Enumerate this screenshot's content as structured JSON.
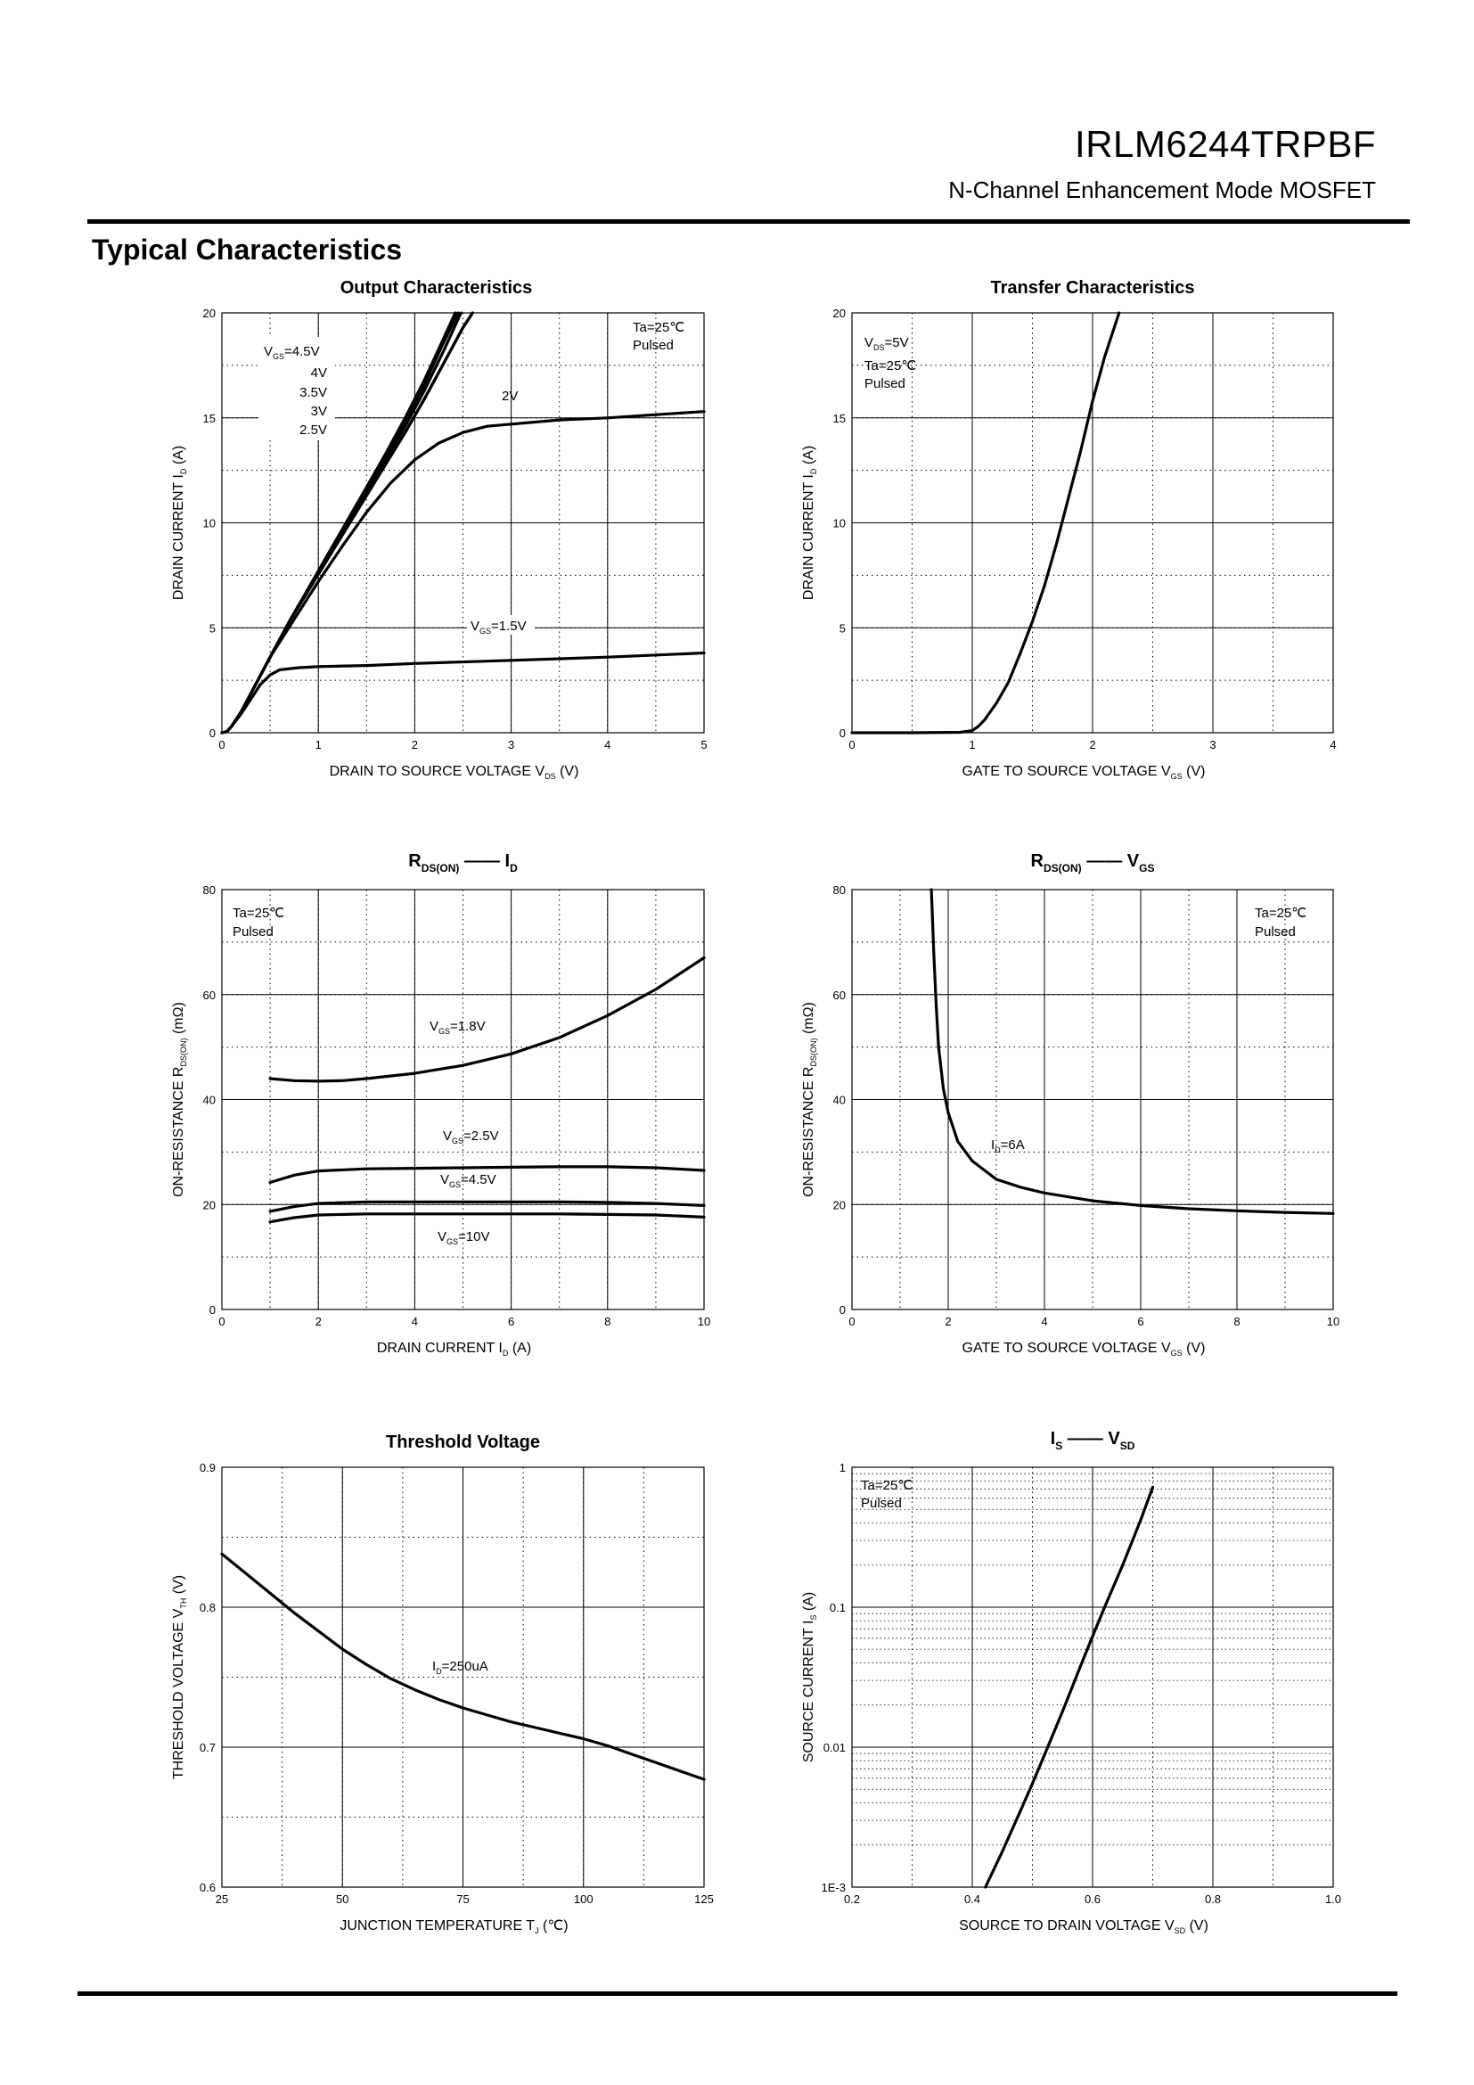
{
  "header": {
    "part_number": "IRLM6244TRPBF",
    "subtitle": "N-Channel Enhancement Mode MOSFET",
    "section_title": "Typical Characteristics"
  },
  "colors": {
    "ink": "#000000",
    "grid": "#000000",
    "background": "#ffffff"
  },
  "chart_data": [
    {
      "id": "output",
      "type": "line",
      "title": "Output Characteristics",
      "xlabel": "DRAIN TO SOURCE VOLTAGE",
      "xlabel_symbol": "V",
      "xlabel_sub": "DS",
      "xlabel_unit": "(V)",
      "ylabel": "DRAIN CURRENT",
      "ylabel_symbol": "I",
      "ylabel_sub": "D",
      "ylabel_unit": "(A)",
      "xlim": [
        0,
        5
      ],
      "ylim": [
        0,
        20
      ],
      "xticks": [
        "0",
        "1",
        "2",
        "3",
        "4",
        "5"
      ],
      "yticks": [
        "0",
        "5",
        "10",
        "15",
        "20"
      ],
      "annotations": [
        "Ta=25℃",
        "Pulsed"
      ],
      "legend": {
        "prefix": "V",
        "sub": "GS",
        "entries": [
          "=4.5V",
          "4V",
          "3.5V",
          "3V",
          "2.5V"
        ]
      },
      "series": [
        {
          "name": "4.5V",
          "x": [
            0.0,
            0.05,
            0.1,
            0.2,
            0.35,
            0.5,
            0.7,
            0.9,
            1.1,
            1.3,
            1.5,
            1.7,
            1.9,
            2.1,
            2.3,
            2.42
          ],
          "y": [
            0.0,
            0.05,
            0.3,
            1.0,
            2.3,
            3.6,
            5.3,
            6.9,
            8.5,
            10.1,
            11.7,
            13.3,
            15.0,
            16.8,
            18.8,
            20.0
          ]
        },
        {
          "name": "4V",
          "x": [
            0.0,
            0.05,
            0.1,
            0.2,
            0.35,
            0.5,
            0.7,
            0.9,
            1.1,
            1.3,
            1.5,
            1.7,
            1.9,
            2.1,
            2.3,
            2.45
          ],
          "y": [
            0.0,
            0.05,
            0.3,
            1.0,
            2.3,
            3.6,
            5.3,
            6.9,
            8.5,
            10.0,
            11.6,
            13.2,
            14.8,
            16.6,
            18.6,
            20.0
          ]
        },
        {
          "name": "3.5V",
          "x": [
            0.0,
            0.05,
            0.1,
            0.2,
            0.35,
            0.5,
            0.7,
            0.9,
            1.1,
            1.3,
            1.5,
            1.7,
            1.9,
            2.1,
            2.3,
            2.48
          ],
          "y": [
            0.0,
            0.05,
            0.3,
            1.0,
            2.3,
            3.6,
            5.3,
            6.9,
            8.4,
            9.9,
            11.5,
            13.0,
            14.6,
            16.3,
            18.2,
            20.0
          ]
        },
        {
          "name": "3V",
          "x": [
            0.0,
            0.05,
            0.1,
            0.2,
            0.35,
            0.5,
            0.7,
            0.9,
            1.1,
            1.3,
            1.5,
            1.7,
            1.9,
            2.1,
            2.3,
            2.5,
            2.6
          ],
          "y": [
            0.0,
            0.05,
            0.3,
            1.0,
            2.3,
            3.6,
            5.3,
            6.8,
            8.3,
            9.8,
            11.3,
            12.8,
            14.3,
            15.9,
            17.6,
            19.3,
            20.0
          ]
        },
        {
          "name": "2.5V",
          "x": [
            0.0,
            0.05,
            0.1,
            0.2,
            0.35,
            0.5,
            0.7,
            0.9,
            1.1,
            1.3,
            1.5,
            1.7,
            1.9,
            2.1,
            2.3,
            2.5,
            2.6
          ],
          "y": [
            0.0,
            0.05,
            0.3,
            1.0,
            2.3,
            3.6,
            5.3,
            6.8,
            8.3,
            9.8,
            11.3,
            12.8,
            14.3,
            15.9,
            17.6,
            19.3,
            20.0
          ]
        },
        {
          "name": "2V",
          "label": "2V",
          "x": [
            0.0,
            0.05,
            0.1,
            0.2,
            0.35,
            0.5,
            0.75,
            1.0,
            1.25,
            1.5,
            1.75,
            2.0,
            2.25,
            2.5,
            2.75,
            3.0,
            3.5,
            4.0,
            4.5,
            5.0
          ],
          "y": [
            0.0,
            0.05,
            0.3,
            1.0,
            2.3,
            3.6,
            5.4,
            7.2,
            8.9,
            10.5,
            11.9,
            13.0,
            13.8,
            14.3,
            14.6,
            14.7,
            14.9,
            15.0,
            15.15,
            15.3
          ]
        },
        {
          "name": "1.5V",
          "label": "=1.5V",
          "label_prefix": "V",
          "label_sub": "GS",
          "x": [
            0.0,
            0.05,
            0.1,
            0.2,
            0.3,
            0.4,
            0.5,
            0.6,
            0.8,
            1.0,
            1.5,
            2.0,
            3.0,
            4.0,
            5.0
          ],
          "y": [
            0.0,
            0.05,
            0.3,
            0.9,
            1.6,
            2.3,
            2.75,
            3.0,
            3.1,
            3.15,
            3.2,
            3.3,
            3.45,
            3.6,
            3.8
          ]
        }
      ]
    },
    {
      "id": "transfer",
      "type": "line",
      "title": "Transfer Characteristics",
      "xlabel": "GATE TO SOURCE VOLTAGE",
      "xlabel_symbol": "V",
      "xlabel_sub": "GS",
      "xlabel_unit": "(V)",
      "ylabel": "DRAIN CURRENT",
      "ylabel_symbol": "I",
      "ylabel_sub": "D",
      "ylabel_unit": "(A)",
      "xlim": [
        0,
        4
      ],
      "ylim": [
        0,
        20
      ],
      "xticks": [
        "0",
        "1",
        "2",
        "3",
        "4"
      ],
      "yticks": [
        "0",
        "5",
        "10",
        "15",
        "20"
      ],
      "annotations": [
        "=5V",
        "Ta=25℃",
        "Pulsed"
      ],
      "annotation_prefix": "V",
      "annotation_sub": "DS",
      "series": [
        {
          "name": "VDS=5V",
          "x": [
            0.0,
            0.5,
            0.9,
            1.0,
            1.05,
            1.1,
            1.2,
            1.3,
            1.4,
            1.5,
            1.6,
            1.7,
            1.8,
            1.9,
            2.0,
            2.1,
            2.22
          ],
          "y": [
            0.0,
            0.0,
            0.02,
            0.1,
            0.3,
            0.6,
            1.4,
            2.4,
            3.8,
            5.3,
            7.0,
            9.0,
            11.2,
            13.4,
            15.8,
            17.9,
            20.0
          ]
        }
      ]
    },
    {
      "id": "rds_id",
      "type": "line",
      "title_main": "R",
      "title_sub": "DS(ON)",
      "title_dash": "——",
      "title_main2": "I",
      "title_sub2": "D",
      "xlabel": "DRAIN CURRENT",
      "xlabel_symbol": "I",
      "xlabel_sub": "D",
      "xlabel_unit": "(A)",
      "ylabel": "ON-RESISTANCE",
      "ylabel_symbol": "R",
      "ylabel_sub": "DS(ON)",
      "ylabel_unit": "(mΩ)",
      "xlim": [
        0,
        10
      ],
      "ylim": [
        0,
        80
      ],
      "xticks": [
        "0",
        "2",
        "4",
        "6",
        "8",
        "10"
      ],
      "yticks": [
        "0",
        "20",
        "40",
        "60",
        "80"
      ],
      "annotations": [
        "Ta=25℃",
        "Pulsed"
      ],
      "series": [
        {
          "name": "VGS=1.8V",
          "label": "=1.8V",
          "label_prefix": "V",
          "label_sub": "GS",
          "x": [
            1,
            1.5,
            2,
            2.5,
            3,
            4,
            5,
            6,
            7,
            8,
            9,
            10
          ],
          "y": [
            44,
            43.6,
            43.5,
            43.6,
            44,
            45,
            46.5,
            48.7,
            51.8,
            56,
            61,
            67
          ]
        },
        {
          "name": "VGS=2.5V",
          "label": "=2.5V",
          "label_prefix": "V",
          "label_sub": "GS",
          "x": [
            1,
            1.5,
            2,
            3,
            4,
            5,
            6,
            7,
            8,
            9,
            10
          ],
          "y": [
            24.2,
            25.6,
            26.4,
            26.8,
            26.9,
            27.0,
            27.1,
            27.2,
            27.2,
            27.0,
            26.5
          ]
        },
        {
          "name": "VGS=4.5V",
          "label": "=4.5V",
          "label_prefix": "V",
          "label_sub": "GS",
          "x": [
            1,
            1.5,
            2,
            3,
            4,
            5,
            6,
            7,
            8,
            9,
            10
          ],
          "y": [
            18.7,
            19.6,
            20.2,
            20.5,
            20.5,
            20.5,
            20.5,
            20.5,
            20.4,
            20.2,
            19.8
          ]
        },
        {
          "name": "VGS=10V",
          "label": "=10V",
          "label_prefix": "V",
          "label_sub": "GS",
          "x": [
            1,
            1.5,
            2,
            3,
            4,
            5,
            6,
            7,
            8,
            9,
            10
          ],
          "y": [
            16.7,
            17.5,
            18.0,
            18.2,
            18.2,
            18.2,
            18.2,
            18.2,
            18.1,
            18.0,
            17.6
          ]
        }
      ]
    },
    {
      "id": "rds_vgs",
      "type": "line",
      "title_main": "R",
      "title_sub": "DS(ON)",
      "title_dash": "——",
      "title_main2": "V",
      "title_sub2": "GS",
      "xlabel": "GATE TO SOURCE VOLTAGE",
      "xlabel_symbol": "V",
      "xlabel_sub": "GS",
      "xlabel_unit": "(V)",
      "ylabel": "ON-RESISTANCE",
      "ylabel_symbol": "R",
      "ylabel_sub": "DS(ON)",
      "ylabel_unit": "(mΩ)",
      "xlim": [
        0,
        10
      ],
      "ylim": [
        0,
        80
      ],
      "xticks": [
        "0",
        "2",
        "4",
        "6",
        "8",
        "10"
      ],
      "yticks": [
        "0",
        "20",
        "40",
        "60",
        "80"
      ],
      "annotations": [
        "Ta=25℃",
        "Pulsed"
      ],
      "series": [
        {
          "name": "ID=6A",
          "label": "=6A",
          "label_prefix": "I",
          "label_sub": "D",
          "x": [
            1.65,
            1.7,
            1.75,
            1.8,
            1.9,
            2.0,
            2.2,
            2.5,
            3.0,
            3.5,
            4.0,
            5.0,
            6.0,
            7.0,
            8.0,
            9.0,
            10.0
          ],
          "y": [
            80,
            68,
            58,
            50,
            42,
            37.5,
            32,
            28.3,
            24.8,
            23.3,
            22.2,
            20.7,
            19.8,
            19.2,
            18.8,
            18.5,
            18.3
          ]
        }
      ]
    },
    {
      "id": "vth",
      "type": "line",
      "title": "Threshold Voltage",
      "xlabel": "JUNCTION TEMPERATURE",
      "xlabel_symbol": "T",
      "xlabel_sub": "J",
      "xlabel_unit": "(℃)",
      "ylabel": "THRESHOLD VOLTAGE",
      "ylabel_symbol": "V",
      "ylabel_sub": "TH",
      "ylabel_unit": "(V)",
      "xlim": [
        25,
        125
      ],
      "ylim": [
        0.6,
        0.9
      ],
      "xticks": [
        "25",
        "50",
        "75",
        "100",
        "125"
      ],
      "yticks": [
        "0.6",
        "0.7",
        "0.8",
        "0.9"
      ],
      "series": [
        {
          "name": "ID=250uA",
          "label": "=250uA",
          "label_prefix": "I",
          "label_sub": "D",
          "x": [
            25,
            30,
            35,
            40,
            45,
            50,
            55,
            60,
            65,
            70,
            75,
            80,
            85,
            90,
            95,
            100,
            105,
            110,
            115,
            120,
            125
          ],
          "y": [
            0.838,
            0.824,
            0.81,
            0.796,
            0.783,
            0.77,
            0.759,
            0.749,
            0.741,
            0.734,
            0.728,
            0.723,
            0.718,
            0.714,
            0.71,
            0.706,
            0.701,
            0.695,
            0.689,
            0.683,
            0.677
          ]
        }
      ]
    },
    {
      "id": "is_vsd",
      "type": "line",
      "title_main": "I",
      "title_sub": "S",
      "title_dash": "——",
      "title_main2": "V",
      "title_sub2": "SD",
      "xlabel": "SOURCE TO DRAIN VOLTAGE",
      "xlabel_symbol": "V",
      "xlabel_sub": "SD",
      "xlabel_unit": "(V)",
      "ylabel": "SOURCE CURRENT",
      "ylabel_symbol": "I",
      "ylabel_sub": "S",
      "ylabel_unit": "(A)",
      "xlim": [
        0.2,
        1.0
      ],
      "ylim": [
        0.001,
        1
      ],
      "yscale": "log",
      "xticks": [
        "0.2",
        "0.4",
        "0.6",
        "0.8",
        "1.0"
      ],
      "yticks": [
        "1E-3",
        "0.01",
        "0.1",
        "1"
      ],
      "annotations": [
        "Ta=25℃",
        "Pulsed"
      ],
      "series": [
        {
          "name": "IS",
          "x": [
            0.422,
            0.45,
            0.48,
            0.5,
            0.52,
            0.55,
            0.58,
            0.6,
            0.62,
            0.65,
            0.68,
            0.7
          ],
          "y": [
            0.001,
            0.0018,
            0.0035,
            0.0055,
            0.0088,
            0.018,
            0.038,
            0.062,
            0.1,
            0.2,
            0.42,
            0.72
          ]
        }
      ]
    }
  ]
}
